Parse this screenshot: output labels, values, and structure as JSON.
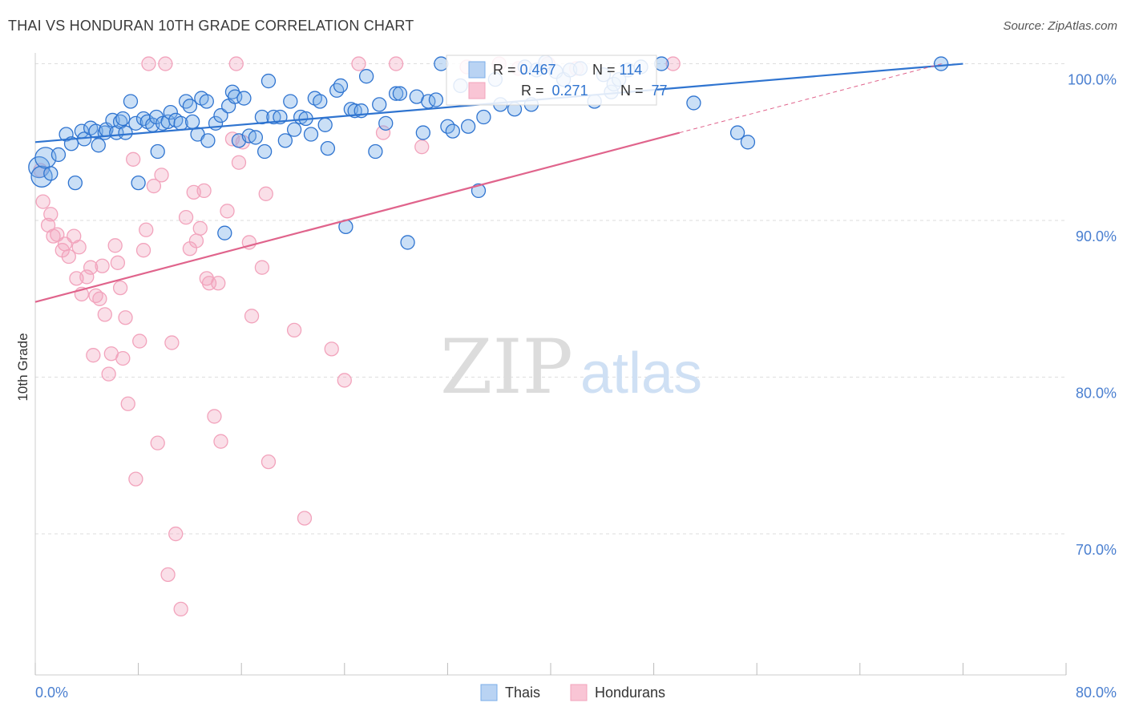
{
  "title": "THAI VS HONDURAN 10TH GRADE CORRELATION CHART",
  "source": "Source: ZipAtlas.com",
  "watermark": {
    "zip": "ZIP",
    "atlas": "atlas"
  },
  "colors": {
    "thai": "#7aaee8",
    "thai_line": "#2f74d0",
    "honduran": "#f2a3bc",
    "honduran_line": "#e0648c",
    "axis_label": "#4a7fd0",
    "grid": "#dedede"
  },
  "legend_top": {
    "rows": [
      {
        "r_label": "R = ",
        "r_value": "0.467",
        "n_label": "N = ",
        "n_value": "114"
      },
      {
        "r_label": "R = ",
        "r_value": " 0.271",
        "n_label": "N = ",
        "n_value": " 77"
      }
    ]
  },
  "legend_bottom": [
    "Thais",
    "Hondurans"
  ],
  "chart_data": {
    "type": "scatter",
    "title": "THAI VS HONDURAN 10TH GRADE CORRELATION CHART",
    "xlabel": "",
    "ylabel": "10th Grade",
    "xlim": [
      0,
      80
    ],
    "ylim": [
      61,
      101
    ],
    "x_tick_labels": [
      "0.0%",
      "80.0%"
    ],
    "y_ticks": [
      70,
      80,
      90,
      100
    ],
    "y_tick_labels": [
      "70.0%",
      "80.0%",
      "90.0%",
      "100.0%"
    ],
    "grid": true,
    "legend_placement": "top-center and bottom",
    "series": [
      {
        "name": "Thais",
        "r": 0.467,
        "n": 114,
        "trend": {
          "x0": 0,
          "y0": 95.0,
          "x1": 72,
          "y1": 100.0
        },
        "points": [
          [
            0.3,
            93.4
          ],
          [
            0.5,
            92.8
          ],
          [
            0.8,
            94.0
          ],
          [
            1.2,
            93.0
          ],
          [
            1.8,
            94.2
          ],
          [
            2.4,
            95.5
          ],
          [
            2.8,
            94.9
          ],
          [
            3.1,
            92.4
          ],
          [
            3.6,
            95.7
          ],
          [
            3.8,
            95.2
          ],
          [
            4.3,
            95.9
          ],
          [
            4.7,
            95.7
          ],
          [
            4.9,
            94.8
          ],
          [
            5.4,
            95.6
          ],
          [
            5.5,
            95.8
          ],
          [
            6.0,
            96.4
          ],
          [
            6.3,
            95.6
          ],
          [
            6.6,
            96.3
          ],
          [
            6.8,
            96.5
          ],
          [
            7.0,
            95.6
          ],
          [
            7.4,
            97.6
          ],
          [
            7.8,
            96.2
          ],
          [
            8.0,
            92.4
          ],
          [
            8.4,
            96.5
          ],
          [
            8.7,
            96.3
          ],
          [
            9.1,
            96.1
          ],
          [
            9.4,
            96.6
          ],
          [
            9.5,
            94.4
          ],
          [
            9.9,
            96.2
          ],
          [
            10.3,
            96.3
          ],
          [
            10.5,
            96.9
          ],
          [
            10.9,
            96.4
          ],
          [
            11.3,
            96.2
          ],
          [
            11.7,
            97.6
          ],
          [
            12.0,
            97.3
          ],
          [
            12.2,
            96.3
          ],
          [
            12.6,
            95.5
          ],
          [
            12.9,
            97.8
          ],
          [
            13.3,
            97.6
          ],
          [
            13.4,
            95.1
          ],
          [
            14.0,
            96.2
          ],
          [
            14.4,
            96.7
          ],
          [
            14.7,
            89.2
          ],
          [
            15.0,
            97.3
          ],
          [
            15.3,
            98.2
          ],
          [
            15.5,
            97.9
          ],
          [
            15.8,
            95.1
          ],
          [
            16.2,
            97.8
          ],
          [
            16.6,
            95.4
          ],
          [
            17.1,
            95.3
          ],
          [
            17.6,
            96.6
          ],
          [
            17.8,
            94.4
          ],
          [
            18.1,
            98.9
          ],
          [
            18.5,
            96.6
          ],
          [
            19.0,
            96.6
          ],
          [
            19.4,
            95.1
          ],
          [
            19.8,
            97.6
          ],
          [
            20.1,
            95.8
          ],
          [
            20.6,
            96.6
          ],
          [
            21.0,
            96.5
          ],
          [
            21.4,
            95.5
          ],
          [
            21.7,
            97.8
          ],
          [
            22.1,
            97.6
          ],
          [
            22.5,
            96.1
          ],
          [
            22.7,
            94.6
          ],
          [
            23.4,
            98.3
          ],
          [
            23.7,
            98.6
          ],
          [
            24.1,
            89.6
          ],
          [
            24.5,
            97.1
          ],
          [
            24.8,
            97.0
          ],
          [
            25.3,
            97.0
          ],
          [
            25.7,
            99.2
          ],
          [
            26.4,
            94.4
          ],
          [
            26.7,
            97.4
          ],
          [
            27.2,
            96.2
          ],
          [
            28.0,
            98.1
          ],
          [
            28.3,
            98.1
          ],
          [
            28.9,
            88.6
          ],
          [
            29.6,
            97.9
          ],
          [
            30.1,
            95.6
          ],
          [
            30.5,
            97.6
          ],
          [
            31.1,
            97.7
          ],
          [
            31.5,
            100.0
          ],
          [
            32.0,
            96.0
          ],
          [
            32.4,
            95.7
          ],
          [
            33.0,
            98.6
          ],
          [
            33.6,
            96.0
          ],
          [
            34.4,
            91.9
          ],
          [
            34.8,
            96.6
          ],
          [
            35.7,
            99.0
          ],
          [
            36.1,
            97.4
          ],
          [
            37.2,
            97.1
          ],
          [
            38.0,
            99.8
          ],
          [
            38.5,
            97.4
          ],
          [
            38.9,
            99.6
          ],
          [
            39.6,
            100.1
          ],
          [
            40.4,
            99.5
          ],
          [
            41.0,
            99.0
          ],
          [
            41.5,
            99.6
          ],
          [
            42.3,
            99.7
          ],
          [
            43.4,
            97.6
          ],
          [
            44.1,
            99.3
          ],
          [
            44.7,
            98.2
          ],
          [
            44.9,
            98.7
          ],
          [
            45.3,
            99.0
          ],
          [
            46.0,
            99.6
          ],
          [
            47.0,
            99.8
          ],
          [
            48.6,
            100.0
          ],
          [
            51.1,
            97.5
          ],
          [
            54.5,
            95.6
          ],
          [
            55.3,
            95.0
          ],
          [
            70.3,
            100.0
          ]
        ]
      },
      {
        "name": "Hondurans",
        "r": 0.271,
        "n": 77,
        "trend": {
          "x0": 0,
          "y0": 84.8,
          "x1": 50,
          "y1": 95.6
        },
        "points": [
          [
            0.4,
            93.2
          ],
          [
            0.6,
            91.2
          ],
          [
            1.0,
            89.7
          ],
          [
            1.2,
            90.4
          ],
          [
            1.4,
            89.0
          ],
          [
            1.7,
            89.1
          ],
          [
            2.1,
            88.1
          ],
          [
            2.3,
            88.5
          ],
          [
            2.6,
            87.7
          ],
          [
            3.0,
            89.0
          ],
          [
            3.2,
            86.3
          ],
          [
            3.4,
            88.3
          ],
          [
            3.6,
            85.3
          ],
          [
            4.0,
            86.4
          ],
          [
            4.3,
            87.0
          ],
          [
            4.5,
            81.4
          ],
          [
            4.7,
            85.2
          ],
          [
            5.0,
            85.0
          ],
          [
            5.2,
            87.1
          ],
          [
            5.4,
            84.0
          ],
          [
            5.7,
            80.2
          ],
          [
            5.9,
            81.5
          ],
          [
            6.2,
            88.4
          ],
          [
            6.4,
            87.3
          ],
          [
            6.6,
            85.7
          ],
          [
            6.8,
            81.2
          ],
          [
            7.0,
            83.8
          ],
          [
            7.2,
            78.3
          ],
          [
            7.6,
            93.9
          ],
          [
            7.8,
            73.5
          ],
          [
            8.1,
            82.3
          ],
          [
            8.4,
            88.1
          ],
          [
            8.6,
            89.4
          ],
          [
            8.8,
            100.0
          ],
          [
            9.2,
            92.2
          ],
          [
            9.5,
            75.8
          ],
          [
            9.8,
            92.9
          ],
          [
            10.1,
            100.0
          ],
          [
            10.3,
            67.4
          ],
          [
            10.6,
            82.2
          ],
          [
            10.9,
            70.0
          ],
          [
            11.3,
            65.2
          ],
          [
            11.7,
            90.2
          ],
          [
            12.0,
            88.2
          ],
          [
            12.3,
            91.8
          ],
          [
            12.5,
            88.7
          ],
          [
            12.8,
            89.5
          ],
          [
            13.1,
            91.9
          ],
          [
            13.3,
            86.3
          ],
          [
            13.5,
            86.0
          ],
          [
            13.9,
            77.5
          ],
          [
            14.2,
            86.0
          ],
          [
            14.4,
            75.9
          ],
          [
            14.9,
            90.6
          ],
          [
            15.3,
            95.2
          ],
          [
            15.6,
            100.0
          ],
          [
            15.8,
            93.7
          ],
          [
            16.1,
            95.0
          ],
          [
            16.6,
            88.6
          ],
          [
            16.8,
            83.9
          ],
          [
            17.6,
            87.0
          ],
          [
            17.9,
            91.7
          ],
          [
            18.1,
            74.6
          ],
          [
            20.1,
            83.0
          ],
          [
            20.9,
            71.0
          ],
          [
            23.0,
            81.8
          ],
          [
            24.0,
            79.8
          ],
          [
            25.1,
            100.0
          ],
          [
            27.0,
            95.6
          ],
          [
            28.0,
            100.0
          ],
          [
            30.0,
            94.7
          ],
          [
            33.5,
            99.8
          ],
          [
            36.0,
            100.0
          ],
          [
            37.5,
            99.7
          ],
          [
            39.8,
            100.0
          ],
          [
            42.0,
            99.7
          ],
          [
            49.5,
            100.0
          ]
        ]
      }
    ]
  }
}
